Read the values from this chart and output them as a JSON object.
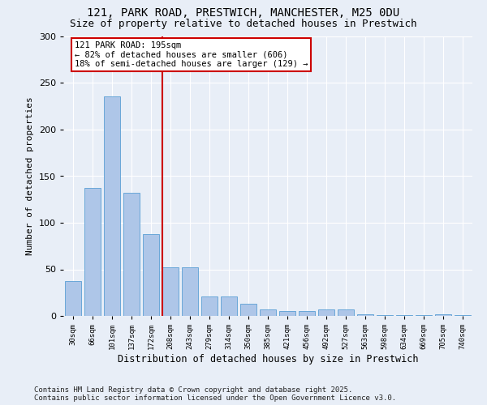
{
  "title1": "121, PARK ROAD, PRESTWICH, MANCHESTER, M25 0DU",
  "title2": "Size of property relative to detached houses in Prestwich",
  "xlabel": "Distribution of detached houses by size in Prestwich",
  "ylabel": "Number of detached properties",
  "categories": [
    "30sqm",
    "66sqm",
    "101sqm",
    "137sqm",
    "172sqm",
    "208sqm",
    "243sqm",
    "279sqm",
    "314sqm",
    "350sqm",
    "385sqm",
    "421sqm",
    "456sqm",
    "492sqm",
    "527sqm",
    "563sqm",
    "598sqm",
    "634sqm",
    "669sqm",
    "705sqm",
    "740sqm"
  ],
  "values": [
    37,
    137,
    236,
    132,
    88,
    52,
    52,
    21,
    21,
    13,
    7,
    5,
    5,
    7,
    7,
    2,
    1,
    1,
    1,
    2,
    1
  ],
  "bar_color": "#aec6e8",
  "bar_edge_color": "#5a9fd4",
  "vline_x": 4.58,
  "vline_color": "#cc0000",
  "annotation_text": "121 PARK ROAD: 195sqm\n← 82% of detached houses are smaller (606)\n18% of semi-detached houses are larger (129) →",
  "annotation_box_color": "#ffffff",
  "annotation_box_edge": "#cc0000",
  "annotation_fontsize": 7.5,
  "footer": "Contains HM Land Registry data © Crown copyright and database right 2025.\nContains public sector information licensed under the Open Government Licence v3.0.",
  "background_color": "#e8eef7",
  "ylim": [
    0,
    300
  ],
  "title_fontsize": 10,
  "subtitle_fontsize": 9,
  "footer_fontsize": 6.5
}
